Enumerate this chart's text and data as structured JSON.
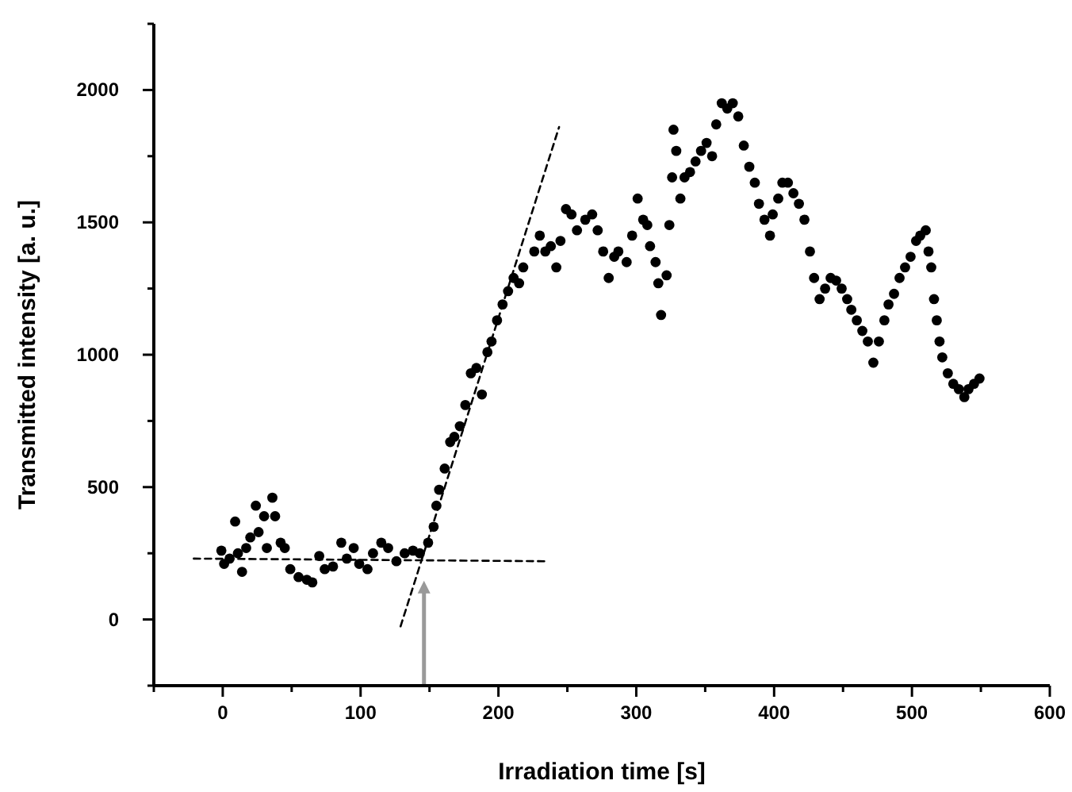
{
  "chart_data": {
    "type": "scatter",
    "xlabel": "Irradiation time [s]",
    "ylabel": "Transmitted intensity [a. u.]",
    "xlim": [
      -50,
      600
    ],
    "ylim": [
      -250,
      2250
    ],
    "xticks": [
      {
        "value": -50,
        "label": null
      },
      0,
      {
        "value": 50,
        "label": null
      },
      100,
      {
        "value": 150,
        "label": null
      },
      200,
      {
        "value": 250,
        "label": null
      },
      300,
      {
        "value": 350,
        "label": null
      },
      400,
      {
        "value": 450,
        "label": null
      },
      500,
      {
        "value": 550,
        "label": null
      },
      600
    ],
    "yticks": [
      {
        "value": -250,
        "label": null
      },
      0,
      {
        "value": 250,
        "label": null
      },
      500,
      {
        "value": 750,
        "label": null
      },
      1000,
      {
        "value": 1250,
        "label": null
      },
      1500,
      {
        "value": 1750,
        "label": null
      },
      2000,
      {
        "value": 2250,
        "label": null
      }
    ],
    "ref_lines": [
      {
        "axis": "x",
        "value": 146,
        "color": "#999999"
      }
    ],
    "series": [
      {
        "marker": "circle",
        "color": "#000000",
        "x": [
          -1,
          1,
          5,
          9,
          11,
          14,
          17,
          20,
          24,
          26,
          30,
          32,
          36,
          38,
          42,
          45,
          49,
          55,
          61,
          65,
          70,
          74,
          80,
          86,
          90,
          95,
          99,
          105,
          109,
          115,
          120,
          126,
          132,
          138,
          143,
          149,
          153,
          155,
          157,
          161,
          165,
          168,
          172,
          176,
          180,
          184,
          188,
          192,
          195,
          199,
          203,
          207,
          211,
          215,
          218,
          226,
          230,
          234,
          238,
          242,
          245,
          249,
          253,
          257,
          263,
          268,
          272,
          276,
          280,
          284,
          287,
          293,
          297,
          301,
          305,
          308,
          310,
          314,
          316,
          318,
          322,
          324,
          326,
          327,
          329,
          332,
          335,
          339,
          343,
          347,
          351,
          355,
          358,
          362,
          366,
          370,
          374,
          378,
          382,
          386,
          389,
          393,
          397,
          399,
          403,
          406,
          410,
          414,
          418,
          422,
          426,
          429,
          433,
          437,
          441,
          445,
          449,
          453,
          456,
          460,
          464,
          468,
          472,
          476,
          480,
          483,
          487,
          491,
          495,
          499,
          503,
          506,
          510,
          512,
          514,
          516,
          518,
          520,
          522,
          526,
          530,
          534,
          538,
          541,
          545,
          549
        ],
        "values": [
          260,
          210,
          230,
          370,
          250,
          180,
          270,
          310,
          430,
          330,
          390,
          270,
          460,
          390,
          290,
          270,
          190,
          160,
          150,
          140,
          240,
          190,
          200,
          290,
          230,
          270,
          210,
          190,
          250,
          290,
          270,
          220,
          250,
          260,
          250,
          290,
          350,
          430,
          490,
          570,
          670,
          690,
          730,
          810,
          930,
          950,
          850,
          1010,
          1050,
          1130,
          1190,
          1240,
          1290,
          1270,
          1330,
          1390,
          1450,
          1390,
          1410,
          1330,
          1430,
          1550,
          1530,
          1470,
          1510,
          1530,
          1470,
          1390,
          1290,
          1370,
          1390,
          1350,
          1450,
          1590,
          1510,
          1490,
          1410,
          1350,
          1270,
          1150,
          1300,
          1490,
          1670,
          1850,
          1770,
          1590,
          1670,
          1690,
          1730,
          1770,
          1800,
          1750,
          1870,
          1950,
          1930,
          1950,
          1900,
          1790,
          1710,
          1650,
          1570,
          1510,
          1450,
          1530,
          1590,
          1650,
          1650,
          1610,
          1570,
          1510,
          1390,
          1290,
          1210,
          1250,
          1290,
          1280,
          1250,
          1210,
          1170,
          1130,
          1090,
          1050,
          970,
          1050,
          1130,
          1190,
          1230,
          1290,
          1330,
          1370,
          1430,
          1450,
          1470,
          1390,
          1330,
          1210,
          1130,
          1050,
          990,
          930,
          890,
          870,
          840,
          870,
          890,
          910
        ]
      },
      {
        "type": "line",
        "marker": "none",
        "color": "#000000",
        "line_style": "dashed",
        "x": [
          -21,
          235
        ],
        "values": [
          230,
          220
        ]
      },
      {
        "type": "line",
        "marker": "none",
        "color": "#000000",
        "line_style": "dashed",
        "x": [
          129,
          244
        ],
        "values": [
          -26,
          1860
        ]
      }
    ]
  }
}
